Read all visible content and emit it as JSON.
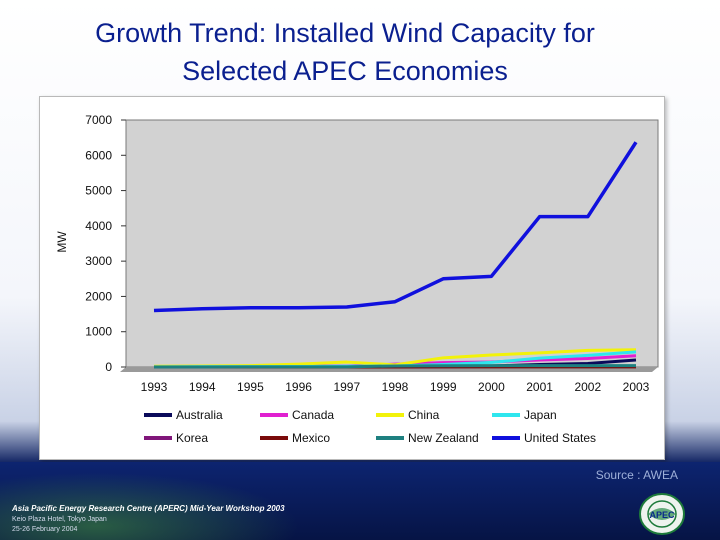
{
  "slide": {
    "title_line1": "Growth Trend: Installed Wind Capacity for",
    "title_line2": "Selected APEC Economies"
  },
  "footer": {
    "source": "Source : AWEA",
    "organization": "Asia Pacific Energy Research Centre (APERC) Mid-Year Workshop 2003",
    "venue": "Keio Plaza Hotel, Tokyo Japan",
    "date": "25-26 February 2004",
    "logo_text": "APEC"
  },
  "colors": {
    "title": "#0a1f8f",
    "plot_background": "#d2d2d2"
  },
  "chart_data": {
    "type": "line",
    "title": "",
    "xlabel": "",
    "ylabel": "MW",
    "x": [
      "1993",
      "1994",
      "1995",
      "1996",
      "1997",
      "1998",
      "1999",
      "2000",
      "2001",
      "2002",
      "2003"
    ],
    "ylim": [
      0,
      7000
    ],
    "yticks": [
      0,
      1000,
      2000,
      3000,
      4000,
      5000,
      6000,
      7000
    ],
    "grid": false,
    "legend_position": "bottom",
    "series": [
      {
        "name": "Australia",
        "color": "#0a0a5a",
        "values": [
          10,
          10,
          10,
          10,
          10,
          15,
          20,
          30,
          70,
          100,
          200
        ]
      },
      {
        "name": "Canada",
        "color": "#e020d0",
        "values": [
          10,
          20,
          20,
          25,
          25,
          80,
          125,
          140,
          200,
          240,
          320
        ]
      },
      {
        "name": "China",
        "color": "#f2f20a",
        "values": [
          20,
          30,
          40,
          80,
          140,
          60,
          260,
          340,
          400,
          470,
          490
        ]
      },
      {
        "name": "Japan",
        "color": "#2ee6ee",
        "values": [
          5,
          10,
          10,
          15,
          20,
          30,
          70,
          130,
          250,
          330,
          430
        ]
      },
      {
        "name": "Korea",
        "color": "#80167a",
        "values": [
          0,
          0,
          0,
          0,
          0,
          0,
          5,
          10,
          10,
          10,
          10
        ]
      },
      {
        "name": "Mexico",
        "color": "#7a0a0a",
        "values": [
          0,
          0,
          0,
          0,
          0,
          0,
          5,
          5,
          5,
          5,
          5
        ]
      },
      {
        "name": "New Zealand",
        "color": "#1e8080",
        "values": [
          0,
          0,
          5,
          5,
          5,
          30,
          35,
          40,
          40,
          40,
          40
        ]
      },
      {
        "name": "United States",
        "color": "#1010dd",
        "values": [
          1600,
          1650,
          1680,
          1680,
          1700,
          1850,
          2500,
          2570,
          4260,
          4260,
          6370
        ]
      }
    ]
  }
}
